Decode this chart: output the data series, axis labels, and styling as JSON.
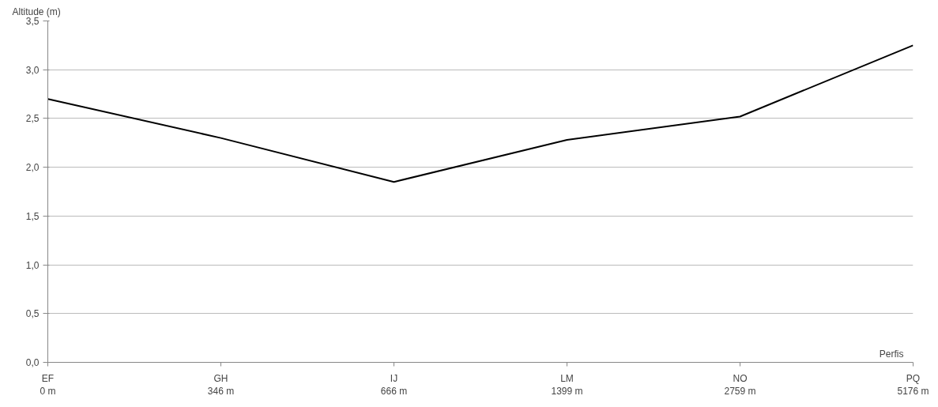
{
  "chart_data": {
    "type": "line",
    "ylabel": "Altitude (m)",
    "xlabel": "Perfis",
    "categories": [
      "EF\n0 m",
      "GH\n346 m",
      "IJ\n666 m",
      "LM\n1399 m",
      "NO\n2759 m",
      "PQ\n5176 m"
    ],
    "series": [
      {
        "color": "#000000",
        "values": [
          2.7,
          2.3,
          1.85,
          2.28,
          2.52,
          3.25
        ]
      }
    ],
    "ylim": [
      0,
      3.5
    ],
    "yticks": [
      {
        "value": 0,
        "label": "0,0"
      },
      {
        "value": 0.5,
        "label": "0,5"
      },
      {
        "value": 1,
        "label": "1,0"
      },
      {
        "value": 1.5,
        "label": "1,5"
      },
      {
        "value": 2,
        "label": "2,0"
      },
      {
        "value": 2.5,
        "label": "2,5"
      },
      {
        "value": 3,
        "label": "3,0"
      },
      {
        "value": 3.5,
        "label": "3,5"
      }
    ],
    "grid": "y",
    "marker": "none",
    "line_style": "solid"
  }
}
